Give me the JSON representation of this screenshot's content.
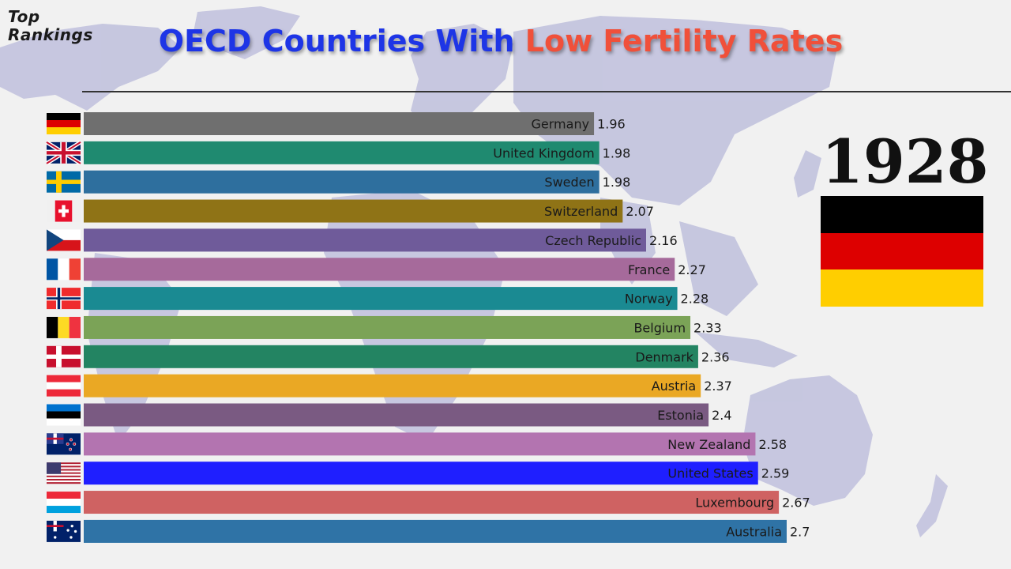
{
  "brand": {
    "line1": "Top",
    "line2": "Rankings"
  },
  "title": {
    "part1": "OECD Countries With ",
    "part2": "Low Fertility Rates"
  },
  "year": "1928",
  "colors": {
    "title_blue": "#1e35e6",
    "title_red": "#f0503a",
    "map": "#bfc0dd"
  },
  "leader_flag": [
    "#000000",
    "#dd0000",
    "#ffce00"
  ],
  "chart_data": {
    "type": "bar",
    "orientation": "horizontal",
    "title": "OECD Countries With Low Fertility Rates",
    "xlabel": "",
    "ylabel": "",
    "categories": [
      "Germany",
      "United Kingdom",
      "Sweden",
      "Switzerland",
      "Czech Republic",
      "France",
      "Norway",
      "Belgium",
      "Denmark",
      "Austria",
      "Estonia",
      "New Zealand",
      "United States",
      "Luxembourg",
      "Australia"
    ],
    "values": [
      1.96,
      1.98,
      1.98,
      2.07,
      2.16,
      2.27,
      2.28,
      2.33,
      2.36,
      2.37,
      2.4,
      2.58,
      2.59,
      2.67,
      2.7
    ],
    "value_labels": [
      "1.96",
      "1.98",
      "1.98",
      "2.07",
      "2.16",
      "2.27",
      "2.28",
      "2.33",
      "2.36",
      "2.37",
      "2.4",
      "2.58",
      "2.59",
      "2.67",
      "2.7"
    ],
    "bar_colors": [
      "#6f6f6f",
      "#1f8a70",
      "#2e6f9e",
      "#8f7316",
      "#6f5b9a",
      "#a66a9b",
      "#1a8a92",
      "#7ba357",
      "#238462",
      "#eaa824",
      "#7a5a82",
      "#b374b0",
      "#1f1fff",
      "#cf6262",
      "#2f73a6"
    ],
    "flags": [
      "germany",
      "united-kingdom",
      "sweden",
      "switzerland",
      "czech-republic",
      "france",
      "norway",
      "belgium",
      "denmark",
      "austria",
      "estonia",
      "new-zealand",
      "united-states",
      "luxembourg",
      "australia"
    ],
    "xlim": [
      0,
      2.7
    ],
    "grid": false,
    "legend": "none"
  }
}
